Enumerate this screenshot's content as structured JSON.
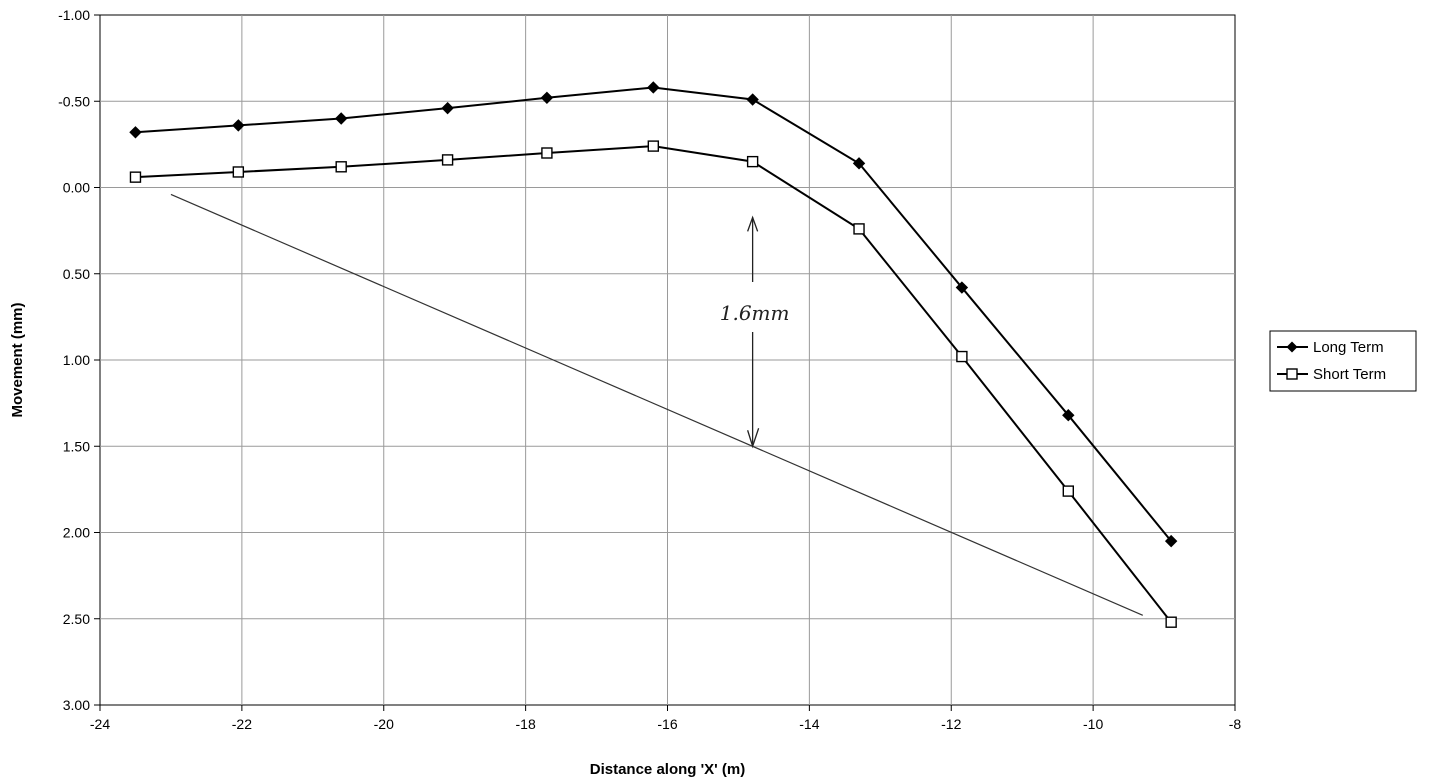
{
  "chart_data": {
    "type": "line",
    "title": "",
    "xlabel": "Distance along 'X' (m)",
    "ylabel": "Movement (mm)",
    "xlim": [
      -24,
      -8
    ],
    "ylim": [
      -1.0,
      3.0
    ],
    "y_inverted": true,
    "x_ticks": [
      -24,
      -22,
      -20,
      -18,
      -16,
      -14,
      -12,
      -10,
      -8
    ],
    "x_tick_labels": [
      "-24",
      "-22",
      "-20",
      "-18",
      "-16",
      "-14",
      "-12",
      "-10",
      "-8"
    ],
    "y_ticks": [
      -1.0,
      -0.5,
      0.0,
      0.5,
      1.0,
      1.5,
      2.0,
      2.5,
      3.0
    ],
    "y_tick_labels": [
      "-1.00",
      "-0.50",
      "0.00",
      "0.50",
      "1.00",
      "1.50",
      "2.00",
      "2.50",
      "3.00"
    ],
    "grid": true,
    "legend_position": "right",
    "series": [
      {
        "name": "Long Term",
        "marker": "filled-diamond",
        "color": "#000000",
        "x": [
          -23.5,
          -22.05,
          -20.6,
          -19.1,
          -17.7,
          -16.2,
          -14.8,
          -13.3,
          -11.85,
          -10.35,
          -8.9
        ],
        "y": [
          -0.32,
          -0.36,
          -0.4,
          -0.46,
          -0.52,
          -0.58,
          -0.51,
          -0.14,
          0.58,
          1.32,
          2.05
        ]
      },
      {
        "name": "Short Term",
        "marker": "open-square",
        "color": "#000000",
        "x": [
          -23.5,
          -22.05,
          -20.6,
          -19.1,
          -17.7,
          -16.2,
          -14.8,
          -13.3,
          -11.85,
          -10.35,
          -8.9
        ],
        "y": [
          -0.06,
          -0.09,
          -0.12,
          -0.16,
          -0.2,
          -0.24,
          -0.15,
          0.24,
          0.98,
          1.76,
          2.52
        ]
      }
    ],
    "annotations": {
      "label": "1.6mm",
      "reference_line": {
        "x": [
          -23.0,
          -9.3
        ],
        "y": [
          0.04,
          2.48
        ]
      },
      "arrow": {
        "x": -14.8,
        "y_from": 0.15,
        "y_to": 1.5
      }
    }
  }
}
